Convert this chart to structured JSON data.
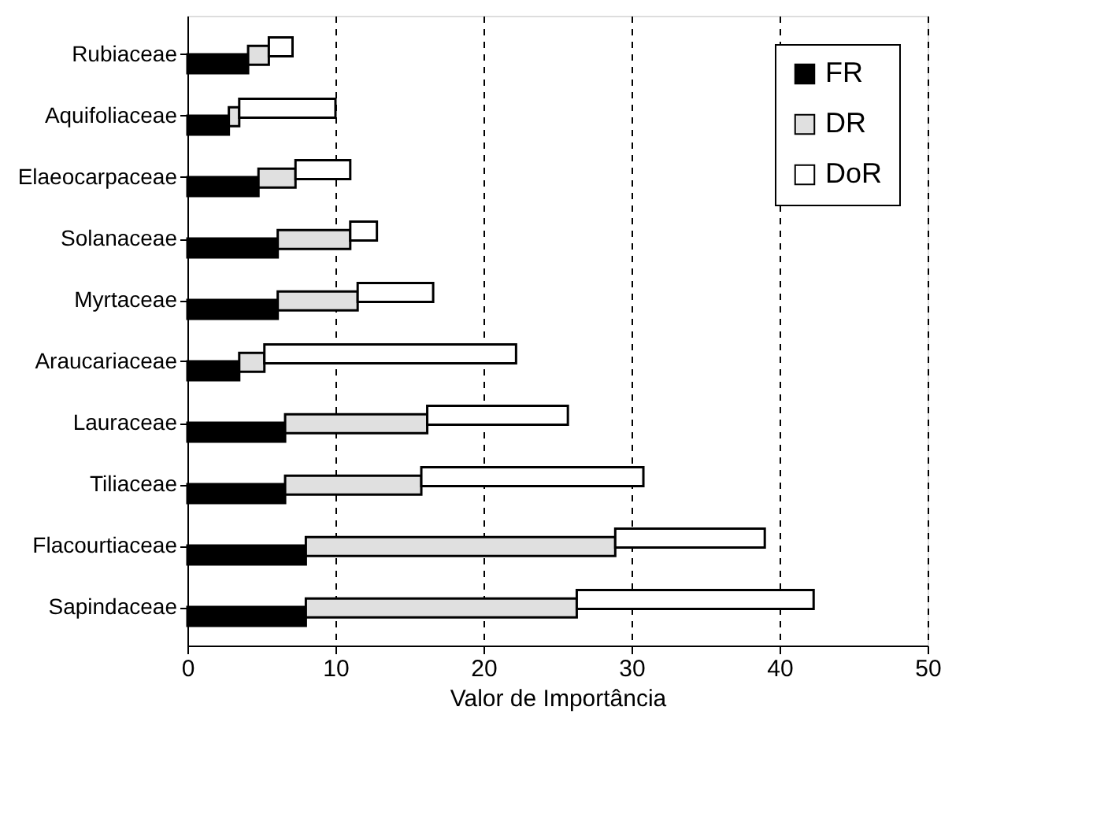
{
  "chart_data": {
    "type": "bar",
    "orientation": "horizontal",
    "stacked": true,
    "xlabel": "Valor de Importância",
    "categories": [
      "Rubiaceae",
      "Aquifoliaceae",
      "Elaeocarpaceae",
      "Solanaceae",
      "Myrtaceae",
      "Araucariaceae",
      "Lauraceae",
      "Tiliaceae",
      "Flacourtiaceae",
      "Sapindaceae"
    ],
    "series": [
      {
        "name": "FR",
        "color": "#000000",
        "values": [
          4.1,
          2.8,
          4.8,
          6.1,
          6.1,
          3.5,
          6.6,
          6.6,
          8.0,
          8.0
        ]
      },
      {
        "name": "DR",
        "color": "#e0e0e0",
        "values": [
          1.4,
          0.7,
          2.5,
          4.9,
          5.4,
          1.7,
          9.6,
          9.2,
          20.9,
          18.3
        ]
      },
      {
        "name": "DoR",
        "color": "#ffffff",
        "values": [
          1.6,
          6.5,
          3.7,
          1.8,
          5.1,
          17.0,
          9.5,
          15.0,
          10.1,
          16.0
        ]
      }
    ],
    "xlim": [
      0,
      50
    ],
    "xticks": [
      0,
      10,
      20,
      30,
      40,
      50
    ],
    "grid": "x",
    "legend": "top right"
  }
}
